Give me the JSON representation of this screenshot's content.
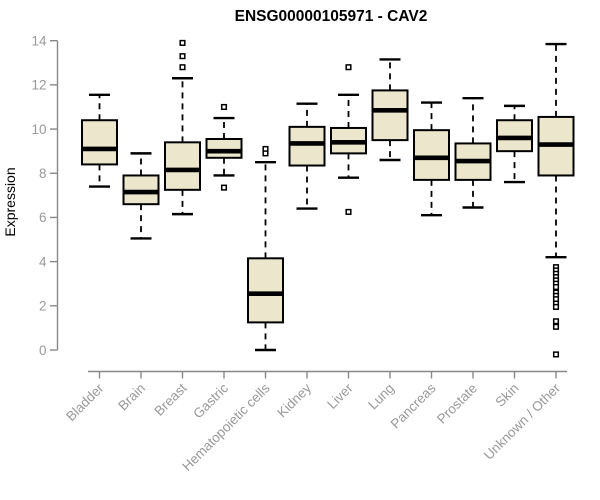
{
  "page": {
    "background_color": "#ffffff"
  },
  "chart_data": {
    "type": "boxplot",
    "title": "ENSG00000105971 - CAV2",
    "xlabel": "",
    "ylabel": "Expression",
    "ylim": [
      0,
      14
    ],
    "yticks": [
      0,
      2,
      4,
      6,
      8,
      10,
      12,
      14
    ],
    "ytick_labels": [
      "0",
      "2",
      "4",
      "6",
      "8",
      "10",
      "12",
      "14"
    ],
    "grid": false,
    "legend": null,
    "categories": [
      "Bladder",
      "Brain",
      "Breast",
      "Gastric",
      "Hematopoietic cells",
      "Kidney",
      "Liver",
      "Lung",
      "Pancreas",
      "Prostate",
      "Skin",
      "Unknown / Other"
    ],
    "series": [
      {
        "name": "Bladder",
        "whisker_low": 7.4,
        "q1": 8.4,
        "median": 9.1,
        "q3": 10.4,
        "whisker_high": 11.55,
        "outliers": []
      },
      {
        "name": "Brain",
        "whisker_low": 5.05,
        "q1": 6.6,
        "median": 7.15,
        "q3": 7.9,
        "whisker_high": 8.9,
        "outliers": []
      },
      {
        "name": "Breast",
        "whisker_low": 6.15,
        "q1": 7.25,
        "median": 8.15,
        "q3": 9.4,
        "whisker_high": 12.3,
        "outliers": [
          13.9,
          13.3,
          12.8
        ]
      },
      {
        "name": "Gastric",
        "whisker_low": 7.9,
        "q1": 8.7,
        "median": 9.0,
        "q3": 9.55,
        "whisker_high": 10.5,
        "outliers": [
          11.0,
          7.35
        ]
      },
      {
        "name": "Hematopoietic cells",
        "whisker_low": 0.0,
        "q1": 1.25,
        "median": 2.55,
        "q3": 4.15,
        "whisker_high": 8.5,
        "outliers": [
          9.1,
          8.9
        ]
      },
      {
        "name": "Kidney",
        "whisker_low": 6.4,
        "q1": 8.35,
        "median": 9.35,
        "q3": 10.1,
        "whisker_high": 11.15,
        "outliers": []
      },
      {
        "name": "Liver",
        "whisker_low": 7.8,
        "q1": 8.9,
        "median": 9.4,
        "q3": 10.05,
        "whisker_high": 11.55,
        "outliers": [
          12.8,
          6.25
        ]
      },
      {
        "name": "Lung",
        "whisker_low": 8.6,
        "q1": 9.5,
        "median": 10.85,
        "q3": 11.75,
        "whisker_high": 13.15,
        "outliers": []
      },
      {
        "name": "Pancreas",
        "whisker_low": 6.1,
        "q1": 7.7,
        "median": 8.7,
        "q3": 9.95,
        "whisker_high": 11.2,
        "outliers": []
      },
      {
        "name": "Prostate",
        "whisker_low": 6.45,
        "q1": 7.7,
        "median": 8.55,
        "q3": 9.35,
        "whisker_high": 11.4,
        "outliers": []
      },
      {
        "name": "Skin",
        "whisker_low": 7.6,
        "q1": 9.0,
        "median": 9.6,
        "q3": 10.4,
        "whisker_high": 11.05,
        "outliers": []
      },
      {
        "name": "Unknown / Other",
        "whisker_low": 4.2,
        "q1": 7.9,
        "median": 9.3,
        "q3": 10.55,
        "whisker_high": 13.85,
        "outliers": [
          3.75,
          3.6,
          3.45,
          3.3,
          3.15,
          3.0,
          2.85,
          2.6,
          2.45,
          2.3,
          2.1,
          1.95,
          1.3,
          1.05,
          -0.2
        ]
      }
    ],
    "colors": {
      "box_fill": "#ECE7CC",
      "box_border": "#000000",
      "median": "#000000",
      "outlier_fill": "#ffffff",
      "axis_line": "#888888",
      "tick_label": "#999999",
      "title": "#000000"
    }
  }
}
